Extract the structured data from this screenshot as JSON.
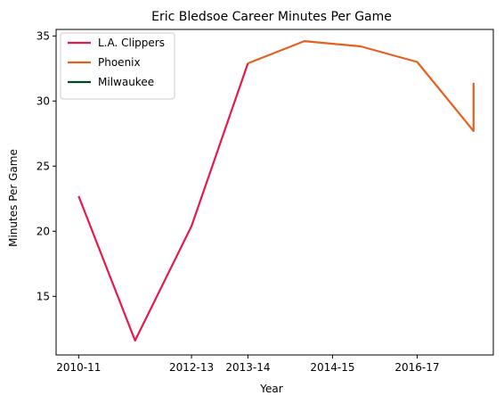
{
  "chart_data": {
    "type": "line",
    "title": "Eric Bledsoe Career Minutes Per Game",
    "xlabel": "Year",
    "ylabel": "Minutes Per Game",
    "x_ticks": [
      {
        "x": 0,
        "label": "2010-11"
      },
      {
        "x": 2,
        "label": "2012-13"
      },
      {
        "x": 3,
        "label": "2013-14"
      },
      {
        "x": 4.5,
        "label": "2014-15"
      },
      {
        "x": 6,
        "label": "2016-17"
      }
    ],
    "xlim": [
      -0.4,
      7.35
    ],
    "ylim": [
      10.5,
      35.5
    ],
    "y_ticks": [
      15,
      20,
      25,
      30,
      35
    ],
    "grid": false,
    "legend_position": "top-left",
    "series": [
      {
        "name": "L.A. Clippers",
        "color": "#e31b4c",
        "points": [
          [
            0,
            22.7
          ],
          [
            1,
            11.6
          ],
          [
            2,
            20.4
          ],
          [
            3,
            32.9
          ]
        ]
      },
      {
        "name": "Phoenix",
        "color": "#e56020",
        "points": [
          [
            3,
            32.9
          ],
          [
            4,
            34.6
          ],
          [
            5,
            34.2
          ],
          [
            6,
            33.0
          ],
          [
            7,
            27.7
          ],
          [
            7,
            31.4
          ]
        ]
      },
      {
        "name": "Milwaukee",
        "color": "#00471b",
        "points": []
      }
    ]
  }
}
